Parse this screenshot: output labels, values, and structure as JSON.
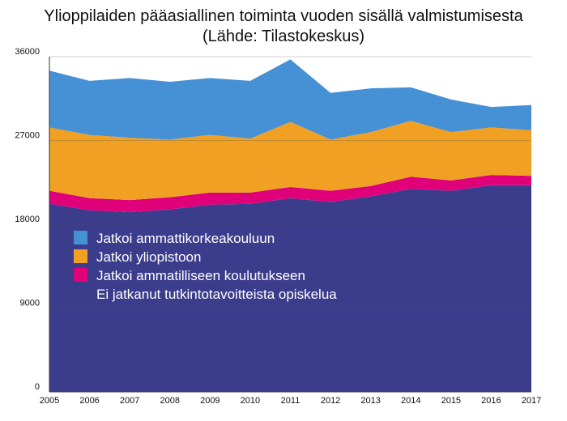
{
  "chart_data": {
    "type": "area",
    "stacked": true,
    "title": "Ylioppilaiden pääasiallinen toiminta vuoden sisällä valmistumisesta",
    "subtitle": "(Lähde: Tilastokeskus)",
    "xlabel": "",
    "ylabel": "",
    "x": [
      "2005",
      "2006",
      "2007",
      "2008",
      "2009",
      "2010",
      "2011",
      "2012",
      "2013",
      "2014",
      "2015",
      "2016",
      "2017"
    ],
    "ylim": [
      0,
      36000
    ],
    "yticks": [
      "0",
      "9000",
      "18000",
      "27000",
      "36000"
    ],
    "grid": "horizontal",
    "legend_position": "inside-left",
    "series": [
      {
        "name": "Ei jatkanut tutkintotavoitteista opiskelua",
        "color": "#3c3c8c",
        "values": [
          20200,
          19500,
          19300,
          19600,
          20100,
          20200,
          20800,
          20400,
          21000,
          21800,
          21600,
          22200,
          22200
        ]
      },
      {
        "name": "Jatkoi ammatilliseen koulutukseen",
        "color": "#e0007a",
        "values": [
          1400,
          1300,
          1300,
          1300,
          1300,
          1200,
          1200,
          1200,
          1100,
          1300,
          1100,
          1100,
          1000
        ]
      },
      {
        "name": "Jatkoi yliopistoon",
        "color": "#f0a022",
        "values": [
          6800,
          6800,
          6700,
          6200,
          6200,
          5800,
          7000,
          5500,
          5800,
          6000,
          5200,
          5100,
          4900
        ]
      },
      {
        "name": "Jatkoi ammattikorkeakouluun",
        "color": "#4690d6",
        "values": [
          6100,
          5800,
          6400,
          6200,
          6100,
          6200,
          6700,
          5000,
          4700,
          3600,
          3500,
          2200,
          2700
        ]
      }
    ],
    "legend_order": [
      "Jatkoi ammattikorkeakouluun",
      "Jatkoi yliopistoon",
      "Jatkoi ammatilliseen koulutukseen",
      "Ei jatkanut tutkintotavoitteista opiskelua"
    ]
  }
}
